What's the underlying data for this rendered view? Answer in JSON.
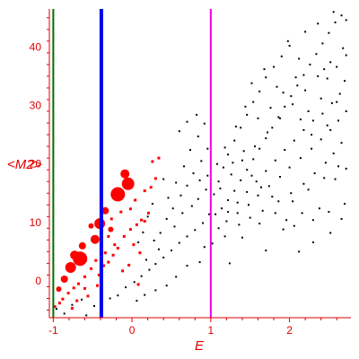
{
  "chart_data": {
    "type": "scatter",
    "title": "",
    "xlabel": "E",
    "ylabel": "<M2>",
    "xlim": [
      -1.05,
      2.78
    ],
    "ylim": [
      -6.3,
      46.5
    ],
    "grid": false,
    "x_ticks": [
      -1,
      0,
      1,
      2
    ],
    "y_ticks": [
      0,
      10,
      20,
      30,
      40
    ],
    "colors": {
      "axis": "#e00000",
      "black_points": "#000000",
      "red_points": "#ff0000",
      "line_green": "#007000",
      "line_blue": "#0000ee",
      "line_magenta": "#ee00ee"
    },
    "vertical_lines": [
      {
        "x": -1.0,
        "color": "#007000",
        "width": 2
      },
      {
        "x": -0.39,
        "color": "#0000ee",
        "width": 4
      },
      {
        "x": 1.0,
        "color": "#ee00ee",
        "width": 2
      }
    ],
    "series": [
      {
        "marker": "red-circles",
        "points": [
          [
            -0.09,
            18.3,
            5
          ],
          [
            -0.05,
            16.6,
            7
          ],
          [
            -0.18,
            14.8,
            8
          ],
          [
            -0.41,
            9.8,
            6
          ],
          [
            -0.47,
            7.1,
            5
          ],
          [
            -0.63,
            6.0,
            4
          ],
          [
            -0.73,
            4.4,
            5
          ],
          [
            -0.78,
            2.3,
            6
          ],
          [
            -0.86,
            0.3,
            4
          ],
          [
            -0.93,
            -1.4,
            3
          ],
          [
            -0.66,
            3.8,
            8
          ],
          [
            -0.34,
            12.0,
            4
          ],
          [
            -0.52,
            9.4,
            3
          ],
          [
            -0.27,
            8.8,
            3
          ]
        ]
      },
      {
        "marker": "red-squares",
        "points": [
          [
            0.04,
            13.8
          ],
          [
            -0.02,
            12.3
          ],
          [
            -0.14,
            11.8
          ],
          [
            0.12,
            10.4
          ],
          [
            0.21,
            11.6
          ],
          [
            -0.26,
            10.6
          ],
          [
            -0.3,
            7.6
          ],
          [
            -0.22,
            6.2
          ],
          [
            -0.34,
            4.8
          ],
          [
            -0.46,
            3.5
          ],
          [
            -0.52,
            2.1
          ],
          [
            -0.6,
            0.7
          ],
          [
            -0.68,
            -0.5
          ],
          [
            -0.74,
            -1.2
          ],
          [
            -0.81,
            -2.1
          ],
          [
            -0.88,
            -3.1
          ],
          [
            -0.92,
            -3.8
          ],
          [
            -0.98,
            -4.4
          ],
          [
            -0.6,
            -1.3
          ],
          [
            -0.56,
            -2.6
          ],
          [
            -0.44,
            -0.8
          ],
          [
            -0.42,
            1.0
          ],
          [
            -0.36,
            2.6
          ],
          [
            -0.3,
            3.2
          ],
          [
            -0.24,
            4.4
          ],
          [
            -0.18,
            5.6
          ],
          [
            -0.1,
            7.6
          ],
          [
            -0.02,
            8.8
          ],
          [
            0.06,
            9.6
          ],
          [
            0.16,
            10.2
          ],
          [
            0.24,
            16.0
          ],
          [
            0.16,
            15.4
          ],
          [
            0.3,
            17.5
          ],
          [
            0.26,
            20.4
          ],
          [
            0.34,
            21.0
          ],
          [
            -0.7,
            -3.4
          ],
          [
            -0.76,
            -4.7
          ],
          [
            -0.12,
            1.7
          ],
          [
            -0.04,
            2.7
          ],
          [
            0.08,
            -0.6
          ],
          [
            0.1,
            4.8
          ],
          [
            0.02,
            6.2
          ]
        ]
      },
      {
        "marker": "black-dots",
        "points": [
          [
            -0.96,
            -4.8
          ],
          [
            -0.86,
            -5.6
          ],
          [
            -0.76,
            -4.1
          ],
          [
            -0.64,
            -3.2
          ],
          [
            -0.58,
            -5.9
          ],
          [
            -0.48,
            -4.3
          ],
          [
            -0.28,
            -3.0
          ],
          [
            -0.18,
            -2.5
          ],
          [
            -0.08,
            -1.1
          ],
          [
            0.03,
            -0.2
          ],
          [
            0.12,
            0.8
          ],
          [
            0.22,
            1.9
          ],
          [
            0.3,
            2.9
          ],
          [
            0.4,
            4.0
          ],
          [
            0.5,
            5.2
          ],
          [
            0.6,
            6.5
          ],
          [
            0.7,
            7.6
          ],
          [
            0.8,
            8.7
          ],
          [
            0.9,
            9.9
          ],
          [
            0.36,
            8.2
          ],
          [
            0.44,
            10.6
          ],
          [
            0.52,
            12.4
          ],
          [
            0.62,
            14.6
          ],
          [
            0.7,
            16.3
          ],
          [
            0.78,
            18.4
          ],
          [
            0.88,
            20.5
          ],
          [
            0.96,
            22.6
          ],
          [
            0.46,
            14.2
          ],
          [
            0.56,
            16.8
          ],
          [
            0.66,
            19.6
          ],
          [
            0.74,
            22.4
          ],
          [
            0.84,
            24.7
          ],
          [
            0.92,
            26.9
          ],
          [
            0.6,
            25.6
          ],
          [
            0.7,
            27.2
          ],
          [
            0.82,
            28.4
          ],
          [
            0.4,
            17.4
          ],
          [
            0.26,
            13.2
          ],
          [
            0.2,
            11.0
          ],
          [
            0.14,
            8.3
          ],
          [
            0.08,
            6.6
          ],
          [
            0.34,
            5.4
          ],
          [
            0.54,
            9.3
          ],
          [
            0.64,
            11.6
          ],
          [
            0.76,
            12.8
          ],
          [
            0.84,
            14.0
          ],
          [
            0.94,
            15.6
          ],
          [
            0.98,
            11.4
          ],
          [
            0.86,
            3.2
          ],
          [
            0.7,
            2.6
          ],
          [
            0.56,
            0.7
          ],
          [
            0.44,
            -0.8
          ],
          [
            0.3,
            -1.6
          ],
          [
            0.16,
            -2.4
          ],
          [
            0.06,
            -3.4
          ],
          [
            0.18,
            3.6
          ],
          [
            0.28,
            6.9
          ],
          [
            0.92,
            5.8
          ],
          [
            0.96,
            18.0
          ],
          [
            0.86,
            17.2
          ],
          [
            1.04,
            14.8
          ],
          [
            1.1,
            17.0
          ],
          [
            1.16,
            19.4
          ],
          [
            1.22,
            21.6
          ],
          [
            1.3,
            24.0
          ],
          [
            1.38,
            26.2
          ],
          [
            1.46,
            28.4
          ],
          [
            1.54,
            30.6
          ],
          [
            1.62,
            32.4
          ],
          [
            1.7,
            34.8
          ],
          [
            1.8,
            36.6
          ],
          [
            1.9,
            38.4
          ],
          [
            2.0,
            40.2
          ],
          [
            1.06,
            11.4
          ],
          [
            1.14,
            12.4
          ],
          [
            1.22,
            13.8
          ],
          [
            1.3,
            15.4
          ],
          [
            1.38,
            17.2
          ],
          [
            1.46,
            19.0
          ],
          [
            1.54,
            20.8
          ],
          [
            1.62,
            22.6
          ],
          [
            1.7,
            24.4
          ],
          [
            1.78,
            26.2
          ],
          [
            1.86,
            28.0
          ],
          [
            1.94,
            29.8
          ],
          [
            2.02,
            31.6
          ],
          [
            2.1,
            33.4
          ],
          [
            2.18,
            35.2
          ],
          [
            2.26,
            37.0
          ],
          [
            2.34,
            38.8
          ],
          [
            2.42,
            40.6
          ],
          [
            2.5,
            42.4
          ],
          [
            2.58,
            44.2
          ],
          [
            2.66,
            45.4
          ],
          [
            2.72,
            44.6
          ],
          [
            1.1,
            9.0
          ],
          [
            1.2,
            10.2
          ],
          [
            1.34,
            11.6
          ],
          [
            1.48,
            13.0
          ],
          [
            1.6,
            14.6
          ],
          [
            1.74,
            16.2
          ],
          [
            1.88,
            17.8
          ],
          [
            2.0,
            19.4
          ],
          [
            2.14,
            21.0
          ],
          [
            2.28,
            22.6
          ],
          [
            2.4,
            24.2
          ],
          [
            2.52,
            25.8
          ],
          [
            2.62,
            27.4
          ],
          [
            2.72,
            29.0
          ],
          [
            1.4,
            7.4
          ],
          [
            1.62,
            9.8
          ],
          [
            1.82,
            11.6
          ],
          [
            2.04,
            13.6
          ],
          [
            2.24,
            15.6
          ],
          [
            2.44,
            17.6
          ],
          [
            2.62,
            19.6
          ],
          [
            2.7,
            13.2
          ],
          [
            2.5,
            11.8
          ],
          [
            2.3,
            10.4
          ],
          [
            2.06,
            9.4
          ],
          [
            1.7,
            5.2
          ],
          [
            1.24,
            3.0
          ],
          [
            1.52,
            33.8
          ],
          [
            1.68,
            36.2
          ],
          [
            1.98,
            41.0
          ],
          [
            2.2,
            42.6
          ],
          [
            2.36,
            44.0
          ],
          [
            2.56,
            46.0
          ],
          [
            2.72,
            38.6
          ],
          [
            2.6,
            36.6
          ],
          [
            2.48,
            34.6
          ],
          [
            2.64,
            32.0
          ],
          [
            2.54,
            30.4
          ],
          [
            2.42,
            28.6
          ],
          [
            2.3,
            27.4
          ],
          [
            2.18,
            25.8
          ],
          [
            2.06,
            24.0
          ],
          [
            1.94,
            22.4
          ],
          [
            1.82,
            20.6
          ],
          [
            1.7,
            18.8
          ],
          [
            1.58,
            17.0
          ],
          [
            1.46,
            15.2
          ],
          [
            1.34,
            13.4
          ],
          [
            1.22,
            11.8
          ],
          [
            1.12,
            15.8
          ],
          [
            1.26,
            18.2
          ],
          [
            1.4,
            20.6
          ],
          [
            1.56,
            23.0
          ],
          [
            1.72,
            25.4
          ],
          [
            1.88,
            27.8
          ],
          [
            2.04,
            30.2
          ],
          [
            2.2,
            32.6
          ],
          [
            2.36,
            35.0
          ],
          [
            2.52,
            37.4
          ],
          [
            2.68,
            39.8
          ],
          [
            1.08,
            20.0
          ],
          [
            1.18,
            22.8
          ],
          [
            1.32,
            26.4
          ],
          [
            1.44,
            29.8
          ],
          [
            1.6,
            27.8
          ],
          [
            1.76,
            29.6
          ],
          [
            1.92,
            32.2
          ],
          [
            2.08,
            34.8
          ],
          [
            2.24,
            29.0
          ],
          [
            2.4,
            31.2
          ],
          [
            2.56,
            21.8
          ],
          [
            2.66,
            23.6
          ],
          [
            2.46,
            20.2
          ],
          [
            2.32,
            18.4
          ],
          [
            2.18,
            16.6
          ],
          [
            2.02,
            15.0
          ],
          [
            1.86,
            13.6
          ],
          [
            1.66,
            12.0
          ],
          [
            1.5,
            10.8
          ],
          [
            1.36,
            9.6
          ],
          [
            1.18,
            7.6
          ],
          [
            1.02,
            6.4
          ],
          [
            1.92,
            8.8
          ],
          [
            2.12,
            5.0
          ],
          [
            2.3,
            6.6
          ],
          [
            2.52,
            8.2
          ],
          [
            2.66,
            10.6
          ],
          [
            1.78,
            14.4
          ],
          [
            1.64,
            16.0
          ],
          [
            1.52,
            18.0
          ],
          [
            1.42,
            22.2
          ],
          [
            1.28,
            20.2
          ],
          [
            2.14,
            27.6
          ],
          [
            2.28,
            25.0
          ],
          [
            2.48,
            26.6
          ],
          [
            2.6,
            30.6
          ],
          [
            2.7,
            34.2
          ],
          [
            2.44,
            36.2
          ],
          [
            2.12,
            38.0
          ],
          [
            1.84,
            33.2
          ],
          [
            2.58,
            17.4
          ],
          [
            2.72,
            19.2
          ],
          [
            2.38,
            12.4
          ],
          [
            2.16,
            11.6
          ],
          [
            1.96,
            10.4
          ]
        ]
      }
    ]
  }
}
